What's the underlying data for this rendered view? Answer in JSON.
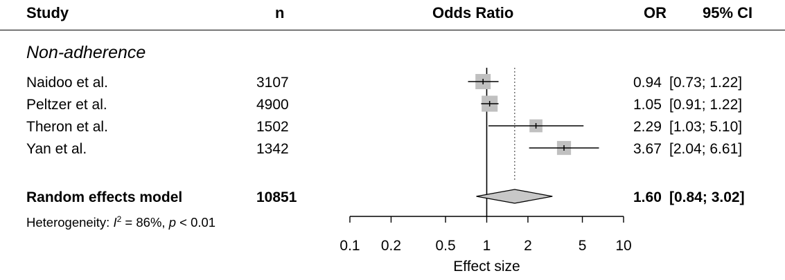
{
  "header": {
    "study": "Study",
    "n": "n",
    "odds_ratio": "Odds Ratio",
    "or": "OR",
    "ci": "95% CI"
  },
  "subgroup_label": "Non-adherence",
  "studies": [
    {
      "name": "Naidoo et al.",
      "n": "3107",
      "or_text": "0.94",
      "ci_text": "[0.73; 1.22]"
    },
    {
      "name": "Peltzer et al.",
      "n": "4900",
      "or_text": "1.05",
      "ci_text": "[0.91; 1.22]"
    },
    {
      "name": "Theron et al.",
      "n": "1502",
      "or_text": "2.29",
      "ci_text": "[1.03; 5.10]"
    },
    {
      "name": "Yan et al.",
      "n": "1342",
      "or_text": "3.67",
      "ci_text": "[2.04; 6.61]"
    }
  ],
  "pooled": {
    "name": "Random effects model",
    "n": "10851",
    "or_text": "1.60",
    "ci_text": "[0.84; 3.02]"
  },
  "heterogeneity": {
    "prefix": "Heterogeneity: ",
    "i_symbol": "I",
    "i_superscript": "2",
    "i_value": " = 86%, ",
    "p_symbol": "p",
    "p_value": " < 0.01"
  },
  "colors": {
    "square": "#c0c0c0",
    "diamond": "#c8c8c8",
    "line": "#000000"
  },
  "chart_data": {
    "type": "forest",
    "xlabel": "Effect size",
    "x_scale": "log",
    "xlim": [
      0.1,
      10
    ],
    "ticks": [
      0.1,
      0.2,
      0.5,
      1,
      2,
      5,
      10
    ],
    "tick_labels": [
      "0.1",
      "0.2",
      "0.5",
      "1",
      "2",
      "5",
      "10"
    ],
    "null_value": 1,
    "pooled_reference": 1.6,
    "studies": [
      {
        "or": 0.94,
        "lo": 0.73,
        "hi": 1.22,
        "weight": 1.0
      },
      {
        "or": 1.05,
        "lo": 0.91,
        "hi": 1.22,
        "weight": 1.05
      },
      {
        "or": 2.29,
        "lo": 1.03,
        "hi": 5.1,
        "weight": 0.85
      },
      {
        "or": 3.67,
        "lo": 2.04,
        "hi": 6.61,
        "weight": 0.92
      }
    ],
    "pooled": {
      "or": 1.6,
      "lo": 0.84,
      "hi": 3.02
    }
  }
}
